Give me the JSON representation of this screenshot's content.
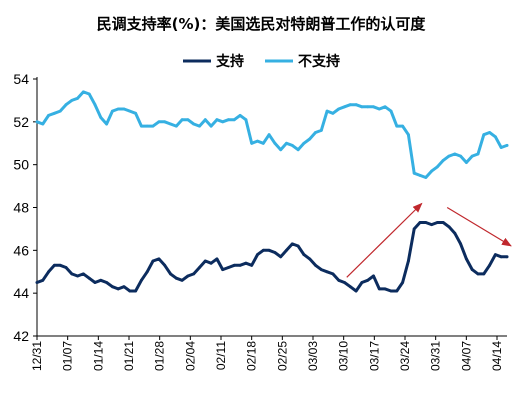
{
  "chart_data": {
    "type": "line",
    "title": "民调支持率(%)：美国选民对特朗普工作的认可度",
    "xlabel": "",
    "ylabel": "",
    "ylim": [
      42,
      54
    ],
    "yticks": [
      42,
      44,
      46,
      48,
      50,
      52,
      54
    ],
    "x_tick_labels": [
      "12/31",
      "01/07",
      "01/14",
      "01/21",
      "01/28",
      "02/04",
      "02/11",
      "02/18",
      "02/25",
      "03/03",
      "03/10",
      "03/17",
      "03/24",
      "03/31",
      "04/07",
      "04/14"
    ],
    "grid": false,
    "legend": "top-center",
    "colors": {
      "approve": "#0c2c5e",
      "disapprove": "#36b0e2",
      "arrow": "#c0282d"
    },
    "series": [
      {
        "name": "支持",
        "values": [
          44.5,
          44.6,
          45.0,
          45.3,
          45.3,
          45.2,
          44.9,
          44.8,
          44.9,
          44.7,
          44.5,
          44.6,
          44.5,
          44.3,
          44.2,
          44.3,
          44.1,
          44.1,
          44.6,
          45.0,
          45.5,
          45.6,
          45.3,
          44.9,
          44.7,
          44.6,
          44.8,
          44.9,
          45.2,
          45.5,
          45.4,
          45.6,
          45.1,
          45.2,
          45.3,
          45.3,
          45.4,
          45.3,
          45.8,
          46.0,
          46.0,
          45.9,
          45.7,
          46.0,
          46.3,
          46.2,
          45.8,
          45.6,
          45.3,
          45.1,
          45.0,
          44.9,
          44.6,
          44.5,
          44.3,
          44.1,
          44.5,
          44.6,
          44.8,
          44.2,
          44.2,
          44.1,
          44.1,
          44.5,
          45.5,
          47.0,
          47.3,
          47.3,
          47.2,
          47.3,
          47.3,
          47.1,
          46.8,
          46.3,
          45.6,
          45.1,
          44.9,
          44.9,
          45.3,
          45.8,
          45.7,
          45.7
        ]
      },
      {
        "name": "不支持",
        "values": [
          52.0,
          51.9,
          52.3,
          52.4,
          52.5,
          52.8,
          53.0,
          53.1,
          53.4,
          53.3,
          52.8,
          52.2,
          51.9,
          52.5,
          52.6,
          52.6,
          52.5,
          52.4,
          51.8,
          51.8,
          51.8,
          52.0,
          52.0,
          51.9,
          51.8,
          52.1,
          52.1,
          51.9,
          51.8,
          52.1,
          51.8,
          52.1,
          52.0,
          52.1,
          52.1,
          52.3,
          52.1,
          51.0,
          51.1,
          51.0,
          51.4,
          51.0,
          50.7,
          51.0,
          50.9,
          50.7,
          51.0,
          51.2,
          51.5,
          51.6,
          52.5,
          52.4,
          52.6,
          52.7,
          52.8,
          52.8,
          52.7,
          52.7,
          52.7,
          52.6,
          52.7,
          52.5,
          51.8,
          51.8,
          51.4,
          49.6,
          49.5,
          49.4,
          49.7,
          49.9,
          50.2,
          50.4,
          50.5,
          50.4,
          50.1,
          50.4,
          50.5,
          51.4,
          51.5,
          51.3,
          50.8,
          50.9
        ]
      }
    ]
  }
}
